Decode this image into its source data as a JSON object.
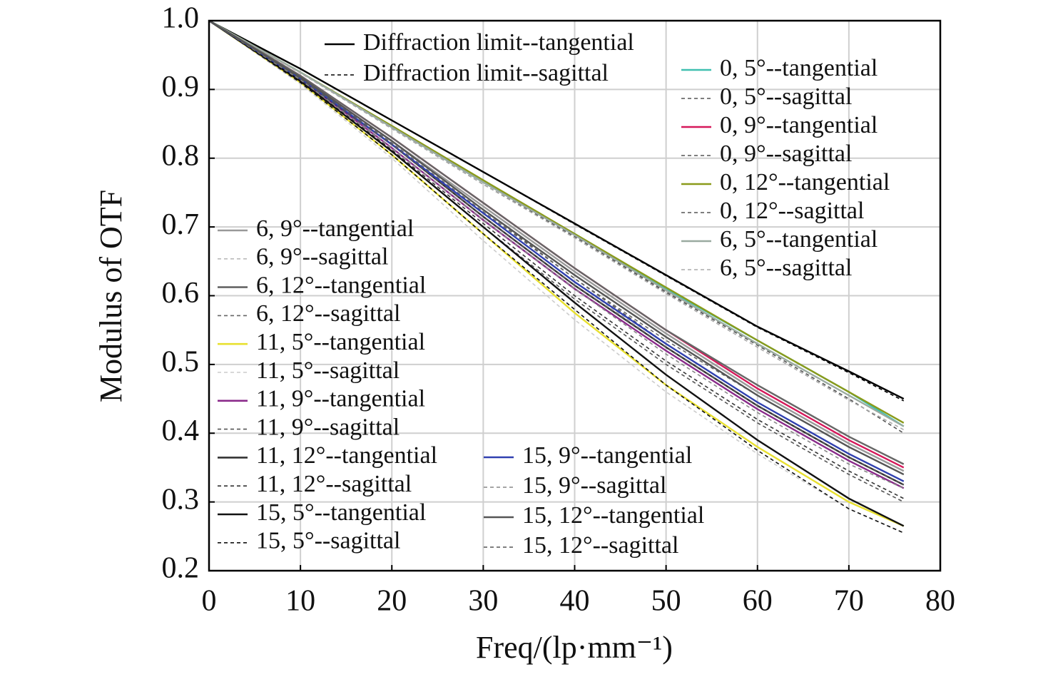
{
  "chart_data": {
    "type": "line",
    "xlabel": "Freq/(lp·mm⁻¹)",
    "ylabel": "Modulus of OTF",
    "x": [
      0,
      10,
      20,
      30,
      40,
      50,
      60,
      70,
      76
    ],
    "xlim": [
      0,
      80
    ],
    "xticks": [
      0,
      10,
      20,
      30,
      40,
      50,
      60,
      70,
      80
    ],
    "ylim": [
      0.2,
      1
    ],
    "yticks": [
      0.2,
      0.3,
      0.4,
      0.5,
      0.6,
      0.7,
      0.8,
      0.9,
      {
        "value": 1,
        "label": "1.0"
      }
    ],
    "grid": true,
    "series": [
      {
        "name": "Diffraction limit--tangential",
        "color": "#000000",
        "style": "solid",
        "values": [
          1,
          0.93,
          0.855,
          0.78,
          0.705,
          0.63,
          0.555,
          0.49,
          0.45
        ]
      },
      {
        "name": "Diffraction limit--sagittal",
        "color": "#000000",
        "style": "dashed",
        "values": [
          1,
          0.93,
          0.855,
          0.78,
          0.704,
          0.629,
          0.554,
          0.488,
          0.447
        ]
      },
      {
        "name": "0, 5°--tangential",
        "color": "#40c0b0",
        "style": "solid",
        "values": [
          1,
          0.925,
          0.845,
          0.765,
          0.69,
          0.61,
          0.535,
          0.46,
          0.41
        ]
      },
      {
        "name": "0, 5°--sagittal",
        "color": "#555555",
        "style": "dashed",
        "values": [
          1,
          0.924,
          0.843,
          0.762,
          0.686,
          0.605,
          0.528,
          0.45,
          0.4
        ]
      },
      {
        "name": "0, 9°--tangential",
        "color": "#d6185a",
        "style": "solid",
        "values": [
          1,
          0.92,
          0.83,
          0.735,
          0.64,
          0.55,
          0.465,
          0.39,
          0.35
        ]
      },
      {
        "name": "0, 9°--sagittal",
        "color": "#555555",
        "style": "dashed",
        "values": [
          1,
          0.918,
          0.825,
          0.725,
          0.625,
          0.53,
          0.445,
          0.37,
          0.33
        ]
      },
      {
        "name": "0, 12°--tangential",
        "color": "#8a9a1a",
        "style": "solid",
        "values": [
          1,
          0.925,
          0.847,
          0.768,
          0.69,
          0.612,
          0.535,
          0.46,
          0.415
        ]
      },
      {
        "name": "0, 12°--sagittal",
        "color": "#555555",
        "style": "dashed",
        "values": [
          1,
          0.924,
          0.845,
          0.765,
          0.687,
          0.607,
          0.53,
          0.455,
          0.41
        ]
      },
      {
        "name": "6, 5°--tangential",
        "color": "#9aaaa0",
        "style": "solid",
        "values": [
          1,
          0.925,
          0.845,
          0.765,
          0.688,
          0.608,
          0.53,
          0.455,
          0.41
        ]
      },
      {
        "name": "6, 5°--sagittal",
        "color": "#aaaaaa",
        "style": "dashed",
        "values": [
          1,
          0.924,
          0.843,
          0.762,
          0.684,
          0.603,
          0.525,
          0.448,
          0.405
        ]
      },
      {
        "name": "6, 9°--tangential",
        "color": "#999999",
        "style": "solid",
        "values": [
          1,
          0.918,
          0.825,
          0.73,
          0.635,
          0.545,
          0.46,
          0.385,
          0.345
        ]
      },
      {
        "name": "6, 9°--sagittal",
        "color": "#bbbbbb",
        "style": "dashed",
        "values": [
          1,
          0.916,
          0.82,
          0.72,
          0.62,
          0.525,
          0.44,
          0.365,
          0.325
        ]
      },
      {
        "name": "6, 12°--tangential",
        "color": "#666666",
        "style": "solid",
        "values": [
          1,
          0.92,
          0.83,
          0.735,
          0.64,
          0.55,
          0.47,
          0.395,
          0.355
        ]
      },
      {
        "name": "6, 12°--sagittal",
        "color": "#666666",
        "style": "dashed",
        "values": [
          1,
          0.918,
          0.822,
          0.722,
          0.625,
          0.535,
          0.455,
          0.38,
          0.34
        ]
      },
      {
        "name": "11, 5°--tangential",
        "color": "#e8e030",
        "style": "solid",
        "values": [
          1,
          0.91,
          0.805,
          0.69,
          0.575,
          0.47,
          0.38,
          0.3,
          0.265
        ]
      },
      {
        "name": "11, 5°--sagittal",
        "color": "#cccccc",
        "style": "dashed",
        "values": [
          1,
          0.908,
          0.8,
          0.68,
          0.565,
          0.46,
          0.37,
          0.29,
          0.255
        ]
      },
      {
        "name": "11, 9°--tangential",
        "color": "#8a2a8a",
        "style": "solid",
        "values": [
          1,
          0.915,
          0.815,
          0.71,
          0.61,
          0.52,
          0.435,
          0.36,
          0.32
        ]
      },
      {
        "name": "11, 9°--sagittal",
        "color": "#555555",
        "style": "dashed",
        "values": [
          1,
          0.912,
          0.81,
          0.7,
          0.595,
          0.5,
          0.415,
          0.34,
          0.3
        ]
      },
      {
        "name": "11, 12°--tangential",
        "color": "#333333",
        "style": "solid",
        "values": [
          1,
          0.915,
          0.82,
          0.715,
          0.615,
          0.525,
          0.44,
          0.365,
          0.325
        ]
      },
      {
        "name": "11, 12°--sagittal",
        "color": "#333333",
        "style": "dashed",
        "values": [
          1,
          0.913,
          0.812,
          0.705,
          0.6,
          0.505,
          0.42,
          0.345,
          0.305
        ]
      },
      {
        "name": "15, 5°--tangential",
        "color": "#111111",
        "style": "solid",
        "values": [
          1,
          0.912,
          0.81,
          0.7,
          0.59,
          0.485,
          0.39,
          0.305,
          0.265
        ]
      },
      {
        "name": "15, 5°--sagittal",
        "color": "#111111",
        "style": "dashed",
        "values": [
          1,
          0.91,
          0.805,
          0.69,
          0.58,
          0.47,
          0.375,
          0.29,
          0.255
        ]
      },
      {
        "name": "15, 9°--tangential",
        "color": "#3040b0",
        "style": "solid",
        "values": [
          1,
          0.916,
          0.82,
          0.72,
          0.62,
          0.53,
          0.445,
          0.37,
          0.33
        ]
      },
      {
        "name": "15, 9°--sagittal",
        "color": "#888888",
        "style": "dashed",
        "values": [
          1,
          0.914,
          0.815,
          0.71,
          0.61,
          0.515,
          0.43,
          0.355,
          0.32
        ]
      },
      {
        "name": "15, 12°--tangential",
        "color": "#555555",
        "style": "solid",
        "values": [
          1,
          0.918,
          0.825,
          0.725,
          0.63,
          0.54,
          0.455,
          0.38,
          0.34
        ]
      },
      {
        "name": "15, 12°--sagittal",
        "color": "#555555",
        "style": "dashed",
        "values": [
          1,
          0.916,
          0.82,
          0.715,
          0.615,
          0.525,
          0.44,
          0.365,
          0.325
        ]
      }
    ]
  }
}
